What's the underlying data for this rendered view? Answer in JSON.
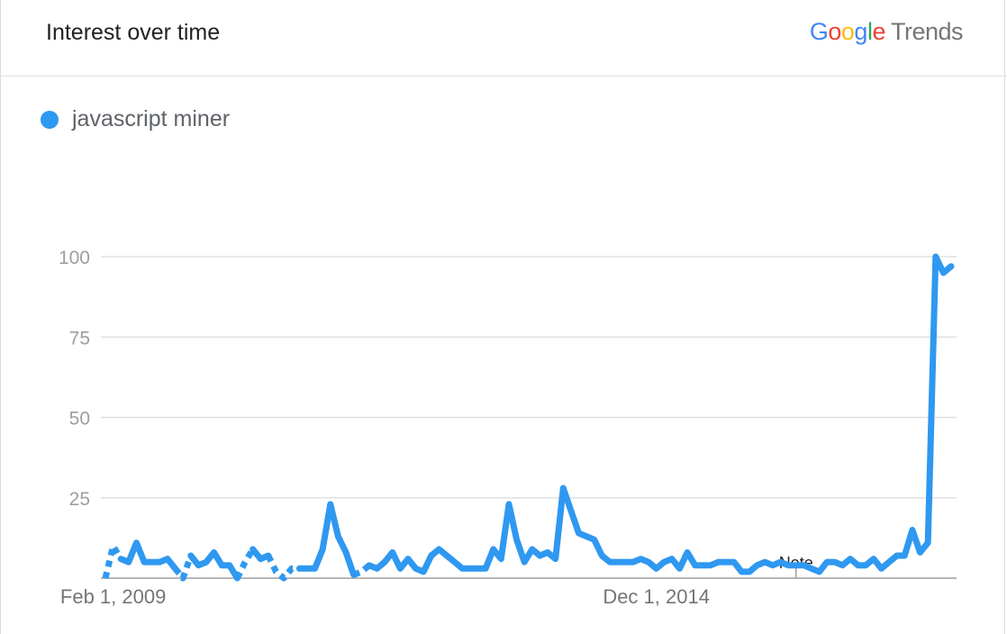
{
  "header": {
    "title": "Interest over time",
    "logo": {
      "google": "Google",
      "trends": "Trends"
    }
  },
  "colors": {
    "series": "#2f98f0",
    "grid": "#e0e0e0",
    "axis": "#9e9e9e"
  },
  "note_label": "Note",
  "chart_data": {
    "type": "line",
    "xlabel": "",
    "ylabel": "",
    "ylim": [
      0,
      100
    ],
    "yticks": [
      25,
      50,
      75,
      100
    ],
    "x_start": "2009-01",
    "x_tick_labels": [
      {
        "label": "Feb 1, 2009",
        "index": 1
      },
      {
        "label": "Dec 1, 2014",
        "index": 71
      }
    ],
    "note_index": 89,
    "series": [
      {
        "name": "javascript miner",
        "dashed_ranges": [
          [
            0,
            2
          ],
          [
            9,
            11
          ],
          [
            17,
            19
          ],
          [
            21,
            25
          ],
          [
            32,
            34
          ]
        ],
        "values": [
          0,
          10,
          6,
          5,
          11,
          5,
          5,
          5,
          6,
          3,
          0,
          7,
          4,
          5,
          8,
          4,
          4,
          0,
          5,
          9,
          6,
          7,
          2,
          0,
          3,
          3,
          3,
          3,
          9,
          23,
          13,
          8,
          1,
          2,
          4,
          3,
          5,
          8,
          3,
          6,
          3,
          2,
          7,
          9,
          7,
          5,
          3,
          3,
          3,
          3,
          9,
          6,
          23,
          12,
          5,
          9,
          7,
          8,
          6,
          28,
          21,
          14,
          13,
          12,
          7,
          5,
          5,
          5,
          5,
          6,
          5,
          3,
          5,
          6,
          3,
          8,
          4,
          4,
          4,
          5,
          5,
          5,
          2,
          2,
          4,
          5,
          4,
          5,
          4,
          4,
          4,
          3,
          2,
          5,
          5,
          4,
          6,
          4,
          4,
          6,
          3,
          5,
          7,
          7,
          15,
          8,
          11,
          100,
          95,
          97
        ]
      }
    ]
  }
}
